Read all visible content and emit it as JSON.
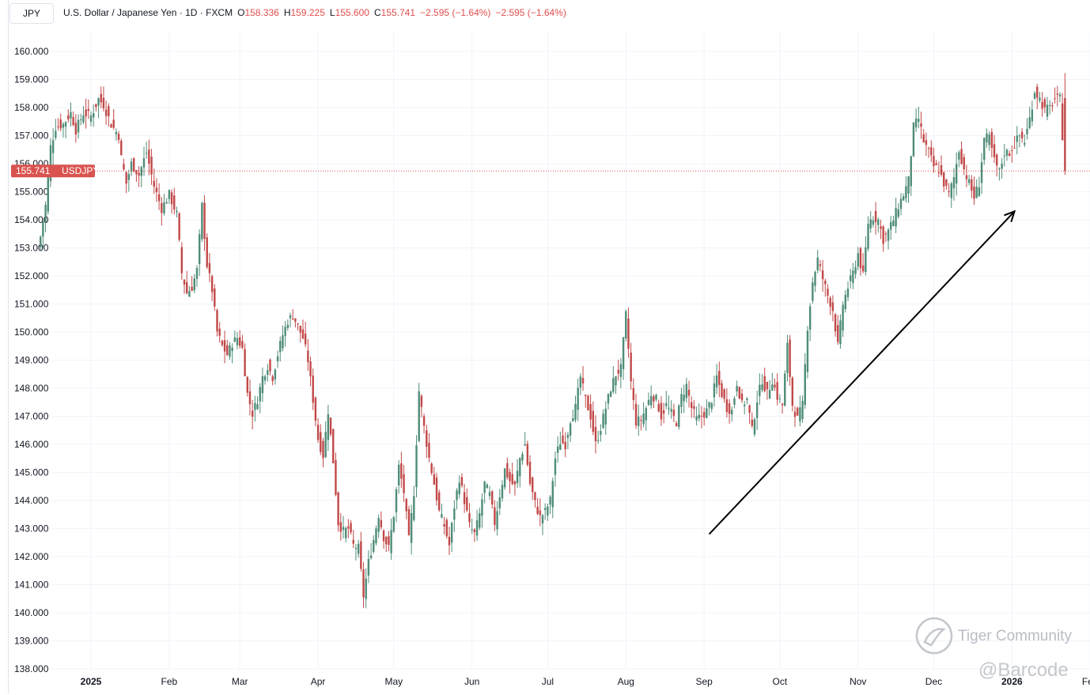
{
  "symbol_box": "JPY",
  "legend": {
    "title": "U.S. Dollar / Japanese Yen · 1D · FXCM",
    "open_label": "O",
    "open": "158.336",
    "high_label": "H",
    "high": "159.225",
    "low_label": "L",
    "low": "155.600",
    "close_label": "C",
    "close": "155.741",
    "change": "−2.595 (−1.64%)",
    "change2": "−2.595 (−1.64%)"
  },
  "watermark": {
    "community": "Tiger Community",
    "handle": "@Barcode"
  },
  "colors": {
    "up": "#4e8c78",
    "down": "#c24848",
    "price_label": "#d9534f",
    "grid": "#f0f3fa",
    "arrow": "#000000"
  },
  "chart_data": {
    "type": "candlestick",
    "symbol": "USDJPY",
    "last_price": 155.741,
    "last_price_label": "155.741",
    "last_symbol_label": "USDJPY",
    "y_ticks": [
      "160.000",
      "159.000",
      "158.000",
      "157.000",
      "156.000",
      "155.000",
      "154.000",
      "153.000",
      "152.000",
      "151.000",
      "150.000",
      "149.000",
      "148.000",
      "147.000",
      "146.000",
      "145.000",
      "144.000",
      "143.000",
      "142.000",
      "141.000",
      "140.000",
      "139.000",
      "138.000"
    ],
    "ylim": [
      138,
      161
    ],
    "x_ticks": [
      {
        "label": "2025",
        "bold": true,
        "day": 11
      },
      {
        "label": "Feb",
        "bold": false,
        "day": 42
      },
      {
        "label": "Mar",
        "bold": false,
        "day": 70
      },
      {
        "label": "Apr",
        "bold": false,
        "day": 101
      },
      {
        "label": "May",
        "bold": false,
        "day": 131
      },
      {
        "label": "Jun",
        "bold": false,
        "day": 162
      },
      {
        "label": "Jul",
        "bold": false,
        "day": 192
      },
      {
        "label": "Aug",
        "bold": false,
        "day": 223
      },
      {
        "label": "Sep",
        "bold": false,
        "day": 254
      },
      {
        "label": "Oct",
        "bold": false,
        "day": 284
      },
      {
        "label": "Nov",
        "bold": false,
        "day": 315
      },
      {
        "label": "Dec",
        "bold": false,
        "day": 345
      },
      {
        "label": "2026",
        "bold": true,
        "day": 376
      },
      {
        "label": "Feb",
        "bold": false,
        "day": 407
      }
    ],
    "xlim_days": [
      -10,
      412
    ],
    "trend_arrow": {
      "from": {
        "day": 256,
        "price": 142.8
      },
      "to": {
        "day": 377,
        "price": 154.3
      }
    },
    "anchors": [
      [
        -9,
        153.4
      ],
      [
        -7,
        154.5
      ],
      [
        -5,
        156.6
      ],
      [
        -3,
        157.3
      ],
      [
        0,
        157.4
      ],
      [
        3,
        157.8
      ],
      [
        5,
        157.2
      ],
      [
        8,
        157.8
      ],
      [
        11,
        157.7
      ],
      [
        14,
        158.3
      ],
      [
        16,
        158.1
      ],
      [
        19,
        157.4
      ],
      [
        22,
        157.0
      ],
      [
        23,
        156.2
      ],
      [
        25,
        155.3
      ],
      [
        27,
        156.0
      ],
      [
        30,
        155.6
      ],
      [
        33,
        156.4
      ],
      [
        36,
        155.2
      ],
      [
        39,
        154.4
      ],
      [
        42,
        154.9
      ],
      [
        45,
        154.2
      ],
      [
        47,
        152.1
      ],
      [
        49,
        151.4
      ],
      [
        51,
        151.6
      ],
      [
        53,
        152.2
      ],
      [
        55,
        154.5
      ],
      [
        57,
        152.4
      ],
      [
        59,
        151.5
      ],
      [
        61,
        150.0
      ],
      [
        63,
        149.5
      ],
      [
        65,
        149.2
      ],
      [
        67,
        149.6
      ],
      [
        69,
        149.8
      ],
      [
        71,
        149.4
      ],
      [
        73,
        147.8
      ],
      [
        75,
        147.1
      ],
      [
        77,
        147.6
      ],
      [
        79,
        148.4
      ],
      [
        81,
        148.8
      ],
      [
        83,
        148.4
      ],
      [
        85,
        149.2
      ],
      [
        87,
        149.9
      ],
      [
        89,
        150.4
      ],
      [
        91,
        150.6
      ],
      [
        93,
        150.2
      ],
      [
        95,
        149.8
      ],
      [
        97,
        149.0
      ],
      [
        99,
        147.6
      ],
      [
        101,
        146.2
      ],
      [
        103,
        145.6
      ],
      [
        105,
        147.2
      ],
      [
        107,
        145.4
      ],
      [
        109,
        143.2
      ],
      [
        111,
        142.9
      ],
      [
        113,
        143.0
      ],
      [
        115,
        142.4
      ],
      [
        117,
        142.3
      ],
      [
        119,
        140.6
      ],
      [
        121,
        141.8
      ],
      [
        123,
        142.6
      ],
      [
        125,
        143.5
      ],
      [
        127,
        142.7
      ],
      [
        129,
        142.3
      ],
      [
        131,
        143.5
      ],
      [
        133,
        145.2
      ],
      [
        135,
        144.3
      ],
      [
        137,
        142.6
      ],
      [
        139,
        144.3
      ],
      [
        141,
        147.9
      ],
      [
        143,
        146.6
      ],
      [
        145,
        145.5
      ],
      [
        147,
        144.6
      ],
      [
        149,
        143.6
      ],
      [
        151,
        143.1
      ],
      [
        153,
        142.4
      ],
      [
        155,
        143.8
      ],
      [
        157,
        144.8
      ],
      [
        159,
        144.0
      ],
      [
        161,
        143.1
      ],
      [
        163,
        142.8
      ],
      [
        165,
        143.5
      ],
      [
        167,
        144.6
      ],
      [
        169,
        144.2
      ],
      [
        171,
        143.2
      ],
      [
        173,
        144.2
      ],
      [
        175,
        145.1
      ],
      [
        177,
        144.7
      ],
      [
        179,
        144.5
      ],
      [
        181,
        145.5
      ],
      [
        183,
        146.0
      ],
      [
        185,
        144.6
      ],
      [
        187,
        143.9
      ],
      [
        189,
        143.4
      ],
      [
        191,
        143.6
      ],
      [
        193,
        144.0
      ],
      [
        195,
        145.5
      ],
      [
        197,
        146.1
      ],
      [
        199,
        146.0
      ],
      [
        201,
        146.9
      ],
      [
        203,
        147.3
      ],
      [
        205,
        148.4
      ],
      [
        207,
        147.6
      ],
      [
        209,
        147.0
      ],
      [
        211,
        146.0
      ],
      [
        213,
        146.6
      ],
      [
        215,
        147.3
      ],
      [
        217,
        148.0
      ],
      [
        219,
        148.5
      ],
      [
        221,
        148.7
      ],
      [
        223,
        150.6
      ],
      [
        225,
        148.2
      ],
      [
        227,
        146.8
      ],
      [
        229,
        146.9
      ],
      [
        231,
        147.3
      ],
      [
        233,
        147.8
      ],
      [
        235,
        147.6
      ],
      [
        237,
        147.0
      ],
      [
        239,
        147.4
      ],
      [
        241,
        147.1
      ],
      [
        243,
        146.8
      ],
      [
        245,
        147.7
      ],
      [
        247,
        148.1
      ],
      [
        249,
        147.3
      ],
      [
        251,
        146.9
      ],
      [
        253,
        147.0
      ],
      [
        255,
        147.2
      ],
      [
        257,
        147.6
      ],
      [
        259,
        148.4
      ],
      [
        261,
        147.8
      ],
      [
        263,
        147.3
      ],
      [
        265,
        147.2
      ],
      [
        267,
        148.2
      ],
      [
        269,
        147.4
      ],
      [
        271,
        147.6
      ],
      [
        273,
        146.5
      ],
      [
        275,
        147.6
      ],
      [
        277,
        148.3
      ],
      [
        279,
        147.8
      ],
      [
        281,
        148.3
      ],
      [
        283,
        147.7
      ],
      [
        285,
        147.4
      ],
      [
        287,
        149.5
      ],
      [
        289,
        147.4
      ],
      [
        291,
        146.9
      ],
      [
        293,
        147.4
      ],
      [
        295,
        150.2
      ],
      [
        297,
        151.8
      ],
      [
        299,
        152.6
      ],
      [
        301,
        151.9
      ],
      [
        303,
        151.3
      ],
      [
        305,
        150.8
      ],
      [
        307,
        149.5
      ],
      [
        309,
        151.0
      ],
      [
        311,
        151.6
      ],
      [
        313,
        152.1
      ],
      [
        315,
        152.8
      ],
      [
        317,
        152.0
      ],
      [
        319,
        153.9
      ],
      [
        321,
        154.1
      ],
      [
        323,
        154.0
      ],
      [
        325,
        153.3
      ],
      [
        327,
        153.6
      ],
      [
        329,
        154.0
      ],
      [
        331,
        154.5
      ],
      [
        333,
        154.9
      ],
      [
        335,
        155.4
      ],
      [
        337,
        157.3
      ],
      [
        339,
        157.6
      ],
      [
        341,
        156.8
      ],
      [
        343,
        156.4
      ],
      [
        345,
        155.9
      ],
      [
        347,
        155.8
      ],
      [
        349,
        155.3
      ],
      [
        351,
        154.9
      ],
      [
        353,
        155.5
      ],
      [
        355,
        156.5
      ],
      [
        357,
        155.8
      ],
      [
        359,
        155.3
      ],
      [
        361,
        154.8
      ],
      [
        363,
        155.3
      ],
      [
        365,
        156.9
      ],
      [
        367,
        156.9
      ],
      [
        369,
        156.1
      ],
      [
        371,
        155.7
      ],
      [
        373,
        156.4
      ],
      [
        375,
        156.4
      ],
      [
        377,
        156.7
      ],
      [
        379,
        157.0
      ],
      [
        381,
        156.8
      ],
      [
        383,
        157.6
      ],
      [
        385,
        158.6
      ],
      [
        387,
        158.3
      ],
      [
        389,
        157.9
      ],
      [
        391,
        158.0
      ],
      [
        393,
        158.3
      ],
      [
        395,
        158.3
      ],
      [
        397,
        155.7
      ]
    ]
  }
}
